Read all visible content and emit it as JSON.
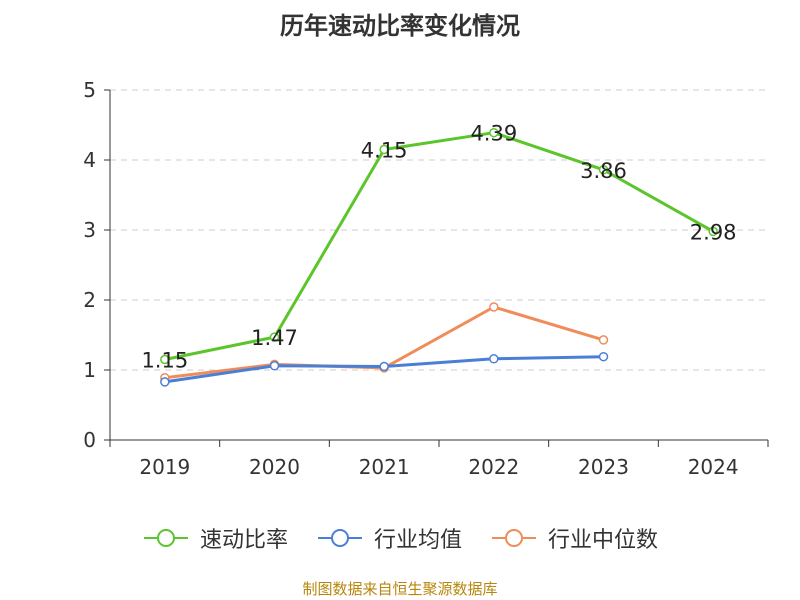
{
  "title": "历年速动比率变化情况",
  "source": "制图数据来自恒生聚源数据库",
  "chart_data": {
    "type": "line",
    "title": "历年速动比率变化情况",
    "categories": [
      "2019",
      "2020",
      "2021",
      "2022",
      "2023",
      "2024"
    ],
    "ylim": [
      0,
      5
    ],
    "yticks": [
      0,
      1,
      2,
      3,
      4,
      5
    ],
    "grid": true,
    "legend_position": "bottom",
    "series": [
      {
        "name": "速动比率",
        "color": "#5bc52b",
        "values": [
          1.15,
          1.47,
          4.15,
          4.39,
          3.86,
          2.98
        ],
        "labels": [
          "1.15",
          "1.47",
          "4.15",
          "4.39",
          "3.86",
          "2.98"
        ]
      },
      {
        "name": "行业均值",
        "color": "#4a7fd6",
        "values": [
          0.83,
          1.06,
          1.05,
          1.16,
          1.19,
          null
        ]
      },
      {
        "name": "行业中位数",
        "color": "#f08c5a",
        "values": [
          0.89,
          1.08,
          1.03,
          1.9,
          1.43,
          null
        ]
      }
    ]
  }
}
